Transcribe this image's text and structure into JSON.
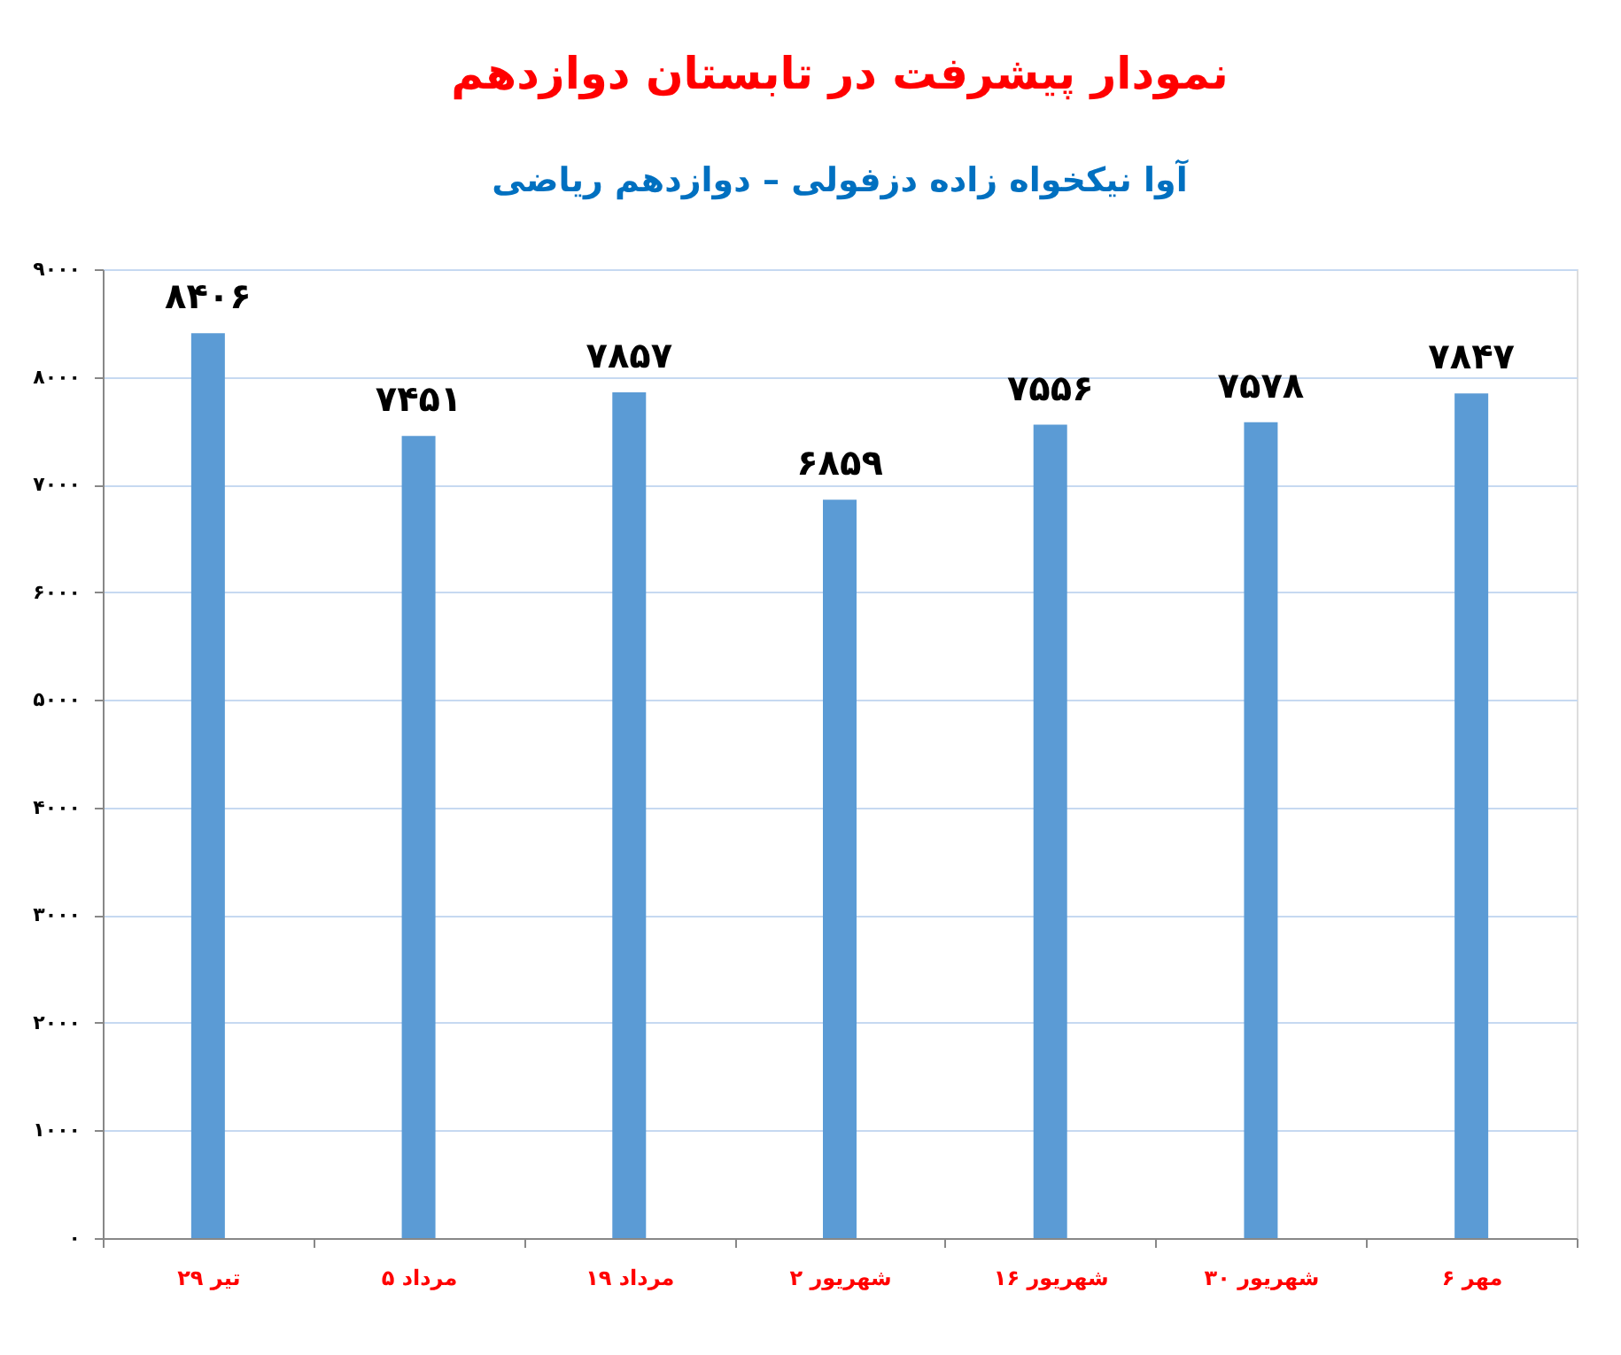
{
  "chart_data": {
    "type": "bar",
    "title": "نمودار پیشرفت در تابستان دوازدهم",
    "subtitle": "آوا نیکخواه زاده دزفولی – دوازدهم ریاضی",
    "categories": [
      "۲۹ تیر",
      "۵ مرداد",
      "۱۹ مرداد",
      "۲ شهریور",
      "۱۶ شهریور",
      "۳۰ شهریور",
      "۶ مهر"
    ],
    "values": [
      8406,
      7451,
      7857,
      6859,
      7556,
      7578,
      7847
    ],
    "value_labels": [
      "۸۴۰۶",
      "۷۴۵۱",
      "۷۸۵۷",
      "۶۸۵۹",
      "۷۵۵۶",
      "۷۵۷۸",
      "۷۸۴۷"
    ],
    "color": "#5b9bd5",
    "ylim": [
      0,
      9000
    ],
    "yticks": [
      {
        "value": 0,
        "label": "۰"
      },
      {
        "value": 1000,
        "label": "۱۰۰۰"
      },
      {
        "value": 2000,
        "label": "۲۰۰۰"
      },
      {
        "value": 3000,
        "label": "۳۰۰۰"
      },
      {
        "value": 4000,
        "label": "۴۰۰۰"
      },
      {
        "value": 5000,
        "label": "۵۰۰۰"
      },
      {
        "value": 6000,
        "label": "۶۰۰۰"
      },
      {
        "value": 7000,
        "label": "۷۰۰۰"
      },
      {
        "value": 8000,
        "label": "۸۰۰۰"
      },
      {
        "value": 9000,
        "label": "۹۰۰۰"
      }
    ],
    "grid": "y"
  }
}
